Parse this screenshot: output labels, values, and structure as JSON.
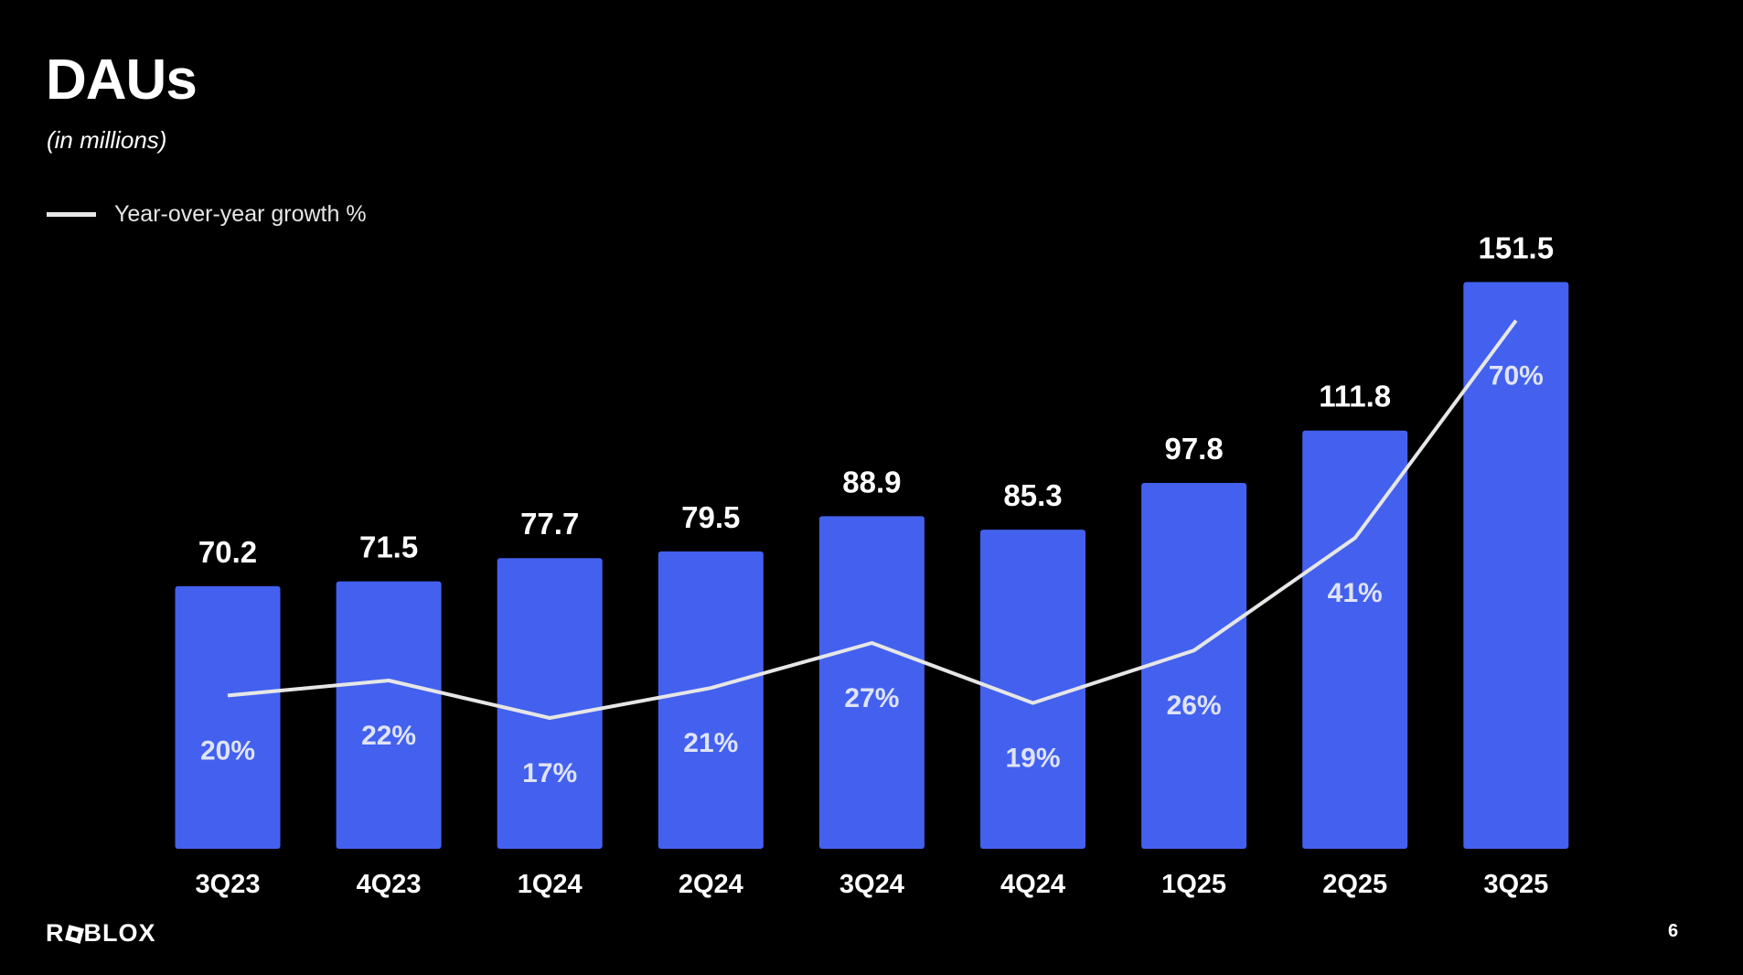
{
  "title": "DAUs",
  "subtitle": "(in millions)",
  "legend": {
    "label": "Year-over-year growth %"
  },
  "logo": "ROBLOX",
  "page_number": "6",
  "colors": {
    "bar": "#4361ee",
    "line": "#e6e6e6",
    "background": "#000000"
  },
  "chart_data": {
    "type": "bar",
    "title": "DAUs",
    "ylabel": "(in millions)",
    "categories": [
      "3Q23",
      "4Q23",
      "1Q24",
      "2Q24",
      "3Q24",
      "4Q24",
      "1Q25",
      "2Q25",
      "3Q25"
    ],
    "series": [
      {
        "name": "DAUs",
        "type": "bar",
        "values": [
          70.2,
          71.5,
          77.7,
          79.5,
          88.9,
          85.3,
          97.8,
          111.8,
          151.5
        ],
        "labels": [
          "70.2",
          "71.5",
          "77.7",
          "79.5",
          "88.9",
          "85.3",
          "97.8",
          "111.8",
          "151.5"
        ]
      },
      {
        "name": "Year-over-year growth %",
        "type": "line",
        "values": [
          20,
          22,
          17,
          21,
          27,
          19,
          26,
          41,
          70
        ],
        "labels": [
          "20%",
          "22%",
          "17%",
          "21%",
          "27%",
          "19%",
          "26%",
          "41%",
          "70%"
        ]
      }
    ],
    "ylim": [
      0,
      160
    ],
    "grid": false,
    "legend_position": "top-left"
  }
}
